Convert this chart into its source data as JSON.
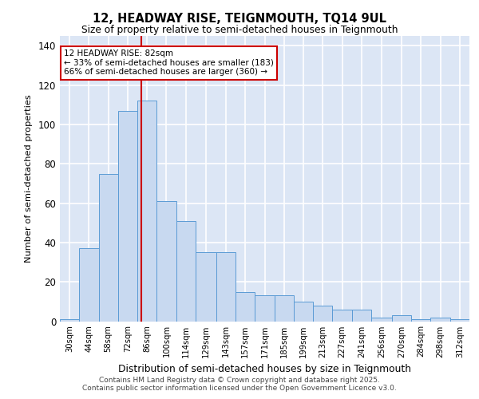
{
  "title1": "12, HEADWAY RISE, TEIGNMOUTH, TQ14 9UL",
  "title2": "Size of property relative to semi-detached houses in Teignmouth",
  "xlabel": "Distribution of semi-detached houses by size in Teignmouth",
  "ylabel": "Number of semi-detached properties",
  "bin_labels": [
    "30sqm",
    "44sqm",
    "58sqm",
    "72sqm",
    "86sqm",
    "100sqm",
    "114sqm",
    "129sqm",
    "143sqm",
    "157sqm",
    "171sqm",
    "185sqm",
    "199sqm",
    "213sqm",
    "227sqm",
    "241sqm",
    "256sqm",
    "270sqm",
    "284sqm",
    "298sqm",
    "312sqm"
  ],
  "values": [
    1,
    37,
    75,
    107,
    112,
    61,
    51,
    35,
    35,
    15,
    13,
    13,
    10,
    8,
    6,
    6,
    2,
    3,
    1,
    2,
    1
  ],
  "bar_color": "#c8d9f0",
  "bar_edge_color": "#5b9bd5",
  "vline_x": 82,
  "vline_color": "#cc0000",
  "annotation_lines": [
    "12 HEADWAY RISE: 82sqm",
    "← 33% of semi-detached houses are smaller (183)",
    "66% of semi-detached houses are larger (360) →"
  ],
  "annotation_box_color": "#cc0000",
  "ylim": [
    0,
    145
  ],
  "yticks": [
    0,
    20,
    40,
    60,
    80,
    100,
    120,
    140
  ],
  "footnote1": "Contains HM Land Registry data © Crown copyright and database right 2025.",
  "footnote2": "Contains public sector information licensed under the Open Government Licence v3.0.",
  "bg_color": "#dce6f5",
  "grid_color": "#ffffff",
  "bin_edges": [
    23,
    37,
    51,
    65,
    79,
    93,
    107,
    121,
    136,
    150,
    164,
    178,
    192,
    206,
    220,
    234,
    248,
    263,
    277,
    291,
    305,
    319
  ]
}
